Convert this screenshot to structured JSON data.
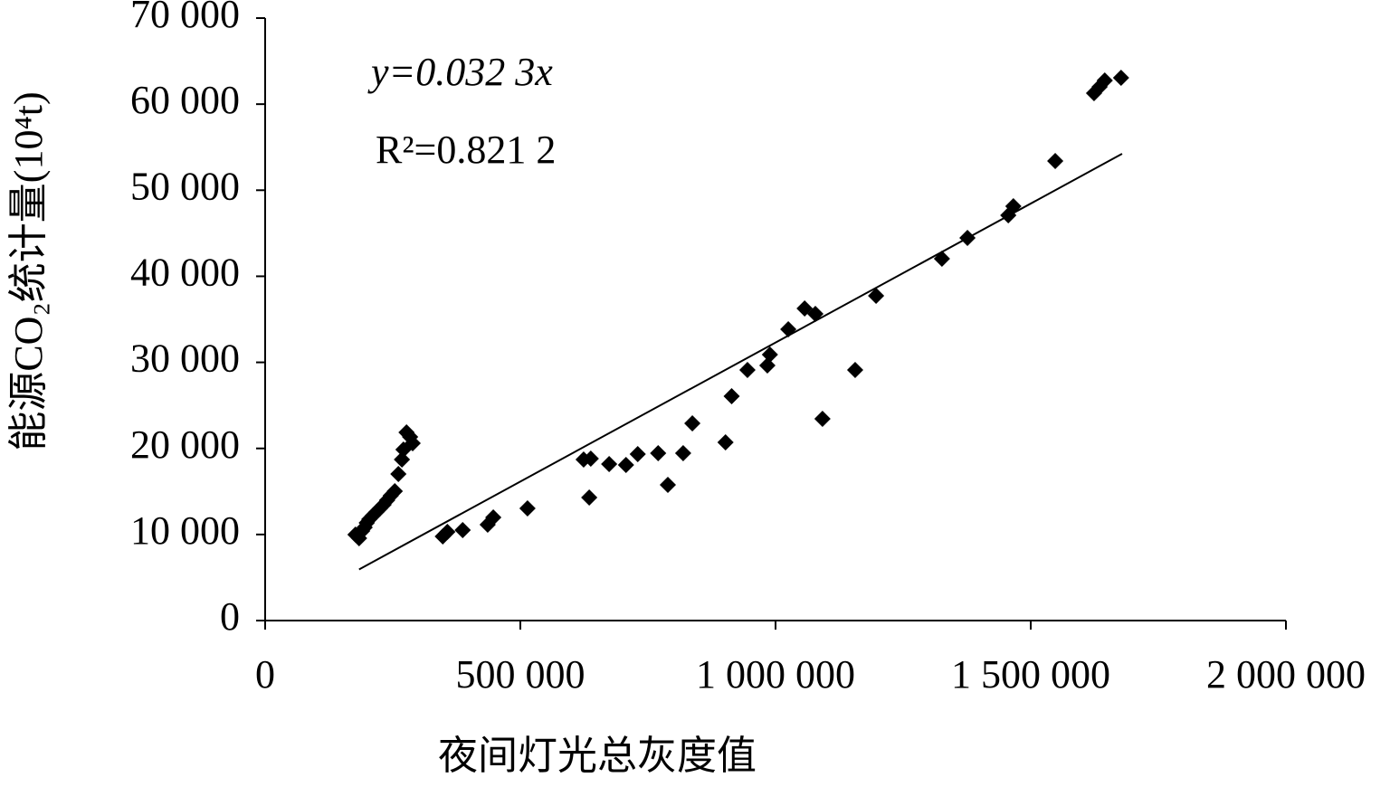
{
  "chart_data": {
    "type": "scatter",
    "x_label": "夜间灯光总灰度值",
    "y_label": "能源CO₂统计量(10⁴t)",
    "annotations": [
      "y=0.032 3x",
      "R²=0.821 2"
    ],
    "color": "#000000",
    "xlim": [
      0,
      2000000
    ],
    "ylim": [
      0,
      70000
    ],
    "xticks": [
      0,
      {
        "value": 500000,
        "label": "500 000"
      },
      {
        "value": 1000000,
        "label": "1 000 000"
      },
      {
        "value": 1500000,
        "label": "1 500 000"
      },
      {
        "value": 2000000,
        "label": "2 000 000"
      }
    ],
    "yticks": [
      0,
      {
        "value": 10000,
        "label": "10 000"
      },
      {
        "value": 20000,
        "label": "20 000"
      },
      {
        "value": 30000,
        "label": "30 000"
      },
      {
        "value": 40000,
        "label": "40 000"
      },
      {
        "value": 50000,
        "label": "50 000"
      },
      {
        "value": 60000,
        "label": "60 000"
      },
      {
        "value": 70000,
        "label": "70 000"
      }
    ],
    "x": [
      177000,
      184000,
      190000,
      195000,
      199000,
      204000,
      211000,
      218000,
      225000,
      232000,
      239000,
      246000,
      254000,
      261000,
      268000,
      271000,
      277000,
      284000,
      289000,
      348000,
      357000,
      387000,
      436000,
      447000,
      514000,
      624000,
      635000,
      638000,
      674000,
      707000,
      730000,
      770000,
      789000,
      819000,
      837000,
      902000,
      914000,
      945000,
      984000,
      989000,
      1025000,
      1057000,
      1078000,
      1092000,
      1156000,
      1197000,
      1326000,
      1376000,
      1456000,
      1466000,
      1548000,
      1624000,
      1635000,
      1645000,
      1677000
    ],
    "values": [
      9990,
      9570,
      10400,
      10830,
      11350,
      11770,
      12190,
      12610,
      13030,
      13450,
      13980,
      14500,
      15030,
      17030,
      18710,
      19870,
      21860,
      21340,
      20600,
      9780,
      10300,
      10510,
      11140,
      11980,
      13030,
      18710,
      14290,
      18810,
      18180,
      18080,
      19340,
      19450,
      15770,
      19450,
      22910,
      20710,
      26070,
      29110,
      29640,
      30900,
      33840,
      36260,
      35630,
      23440,
      29110,
      37730,
      42040,
      44460,
      47090,
      48140,
      53390,
      61280,
      62010,
      62750,
      63060
    ],
    "trendline": {
      "slope": 0.0323,
      "x": [
        184000,
        1679000
      ]
    }
  }
}
